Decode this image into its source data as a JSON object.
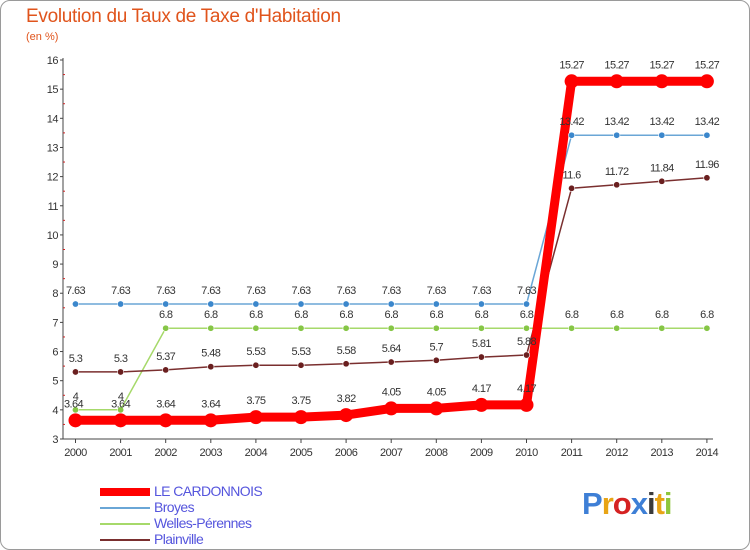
{
  "chart_data": {
    "type": "line",
    "title": "Evolution du Taux de Taxe d'Habitation",
    "unit_label": "(en %)",
    "xlabel": "",
    "ylabel": "",
    "x": [
      "2000",
      "2001",
      "2002",
      "2003",
      "2004",
      "2005",
      "2006",
      "2007",
      "2008",
      "2009",
      "2010",
      "2011",
      "2012",
      "2013",
      "2014"
    ],
    "ylim": [
      3,
      16
    ],
    "yticks": [
      3,
      4,
      5,
      6,
      7,
      8,
      9,
      10,
      11,
      12,
      13,
      14,
      15,
      16
    ],
    "grid": false,
    "legend_position": "bottom-left",
    "series": [
      {
        "name": "LE CARDONNOIS",
        "color": "#ff0000",
        "values": [
          3.64,
          3.64,
          3.64,
          3.64,
          3.75,
          3.75,
          3.82,
          4.05,
          4.05,
          4.17,
          4.17,
          15.27,
          15.27,
          15.27,
          15.27
        ],
        "labels": [
          "",
          "",
          "3.64",
          "3.64",
          "3.75",
          "3.75",
          "3.82",
          "4.05",
          "4.05",
          "4.17",
          "4.17",
          "15.27",
          "15.27",
          "15.27",
          "15.27"
        ]
      },
      {
        "name": "Broyes",
        "color": "#6aa6d6",
        "marker_color": "#3b87cc",
        "values": [
          7.63,
          7.63,
          7.63,
          7.63,
          7.63,
          7.63,
          7.63,
          7.63,
          7.63,
          7.63,
          7.63,
          13.42,
          13.42,
          13.42,
          13.42
        ],
        "labels": [
          "7.63",
          "7.63",
          "7.63",
          "7.63",
          "7.63",
          "7.63",
          "7.63",
          "7.63",
          "7.63",
          "7.63",
          "7.63",
          "13.42",
          "13.42",
          "13.42",
          "13.42"
        ]
      },
      {
        "name": "Welles-Pérennes",
        "color": "#a6d96a",
        "marker_color": "#86c646",
        "values": [
          4,
          4,
          6.8,
          6.8,
          6.8,
          6.8,
          6.8,
          6.8,
          6.8,
          6.8,
          6.8,
          6.8,
          6.8,
          6.8,
          6.8
        ],
        "labels": [
          "4",
          "4",
          "6.8",
          "6.8",
          "6.8",
          "6.8",
          "6.8",
          "6.8",
          "6.8",
          "6.8",
          "6.8",
          "6.8",
          "6.8",
          "6.8",
          "6.8"
        ]
      },
      {
        "name": "Plainville",
        "color": "#7a2f2f",
        "marker_color": "#6a1f1f",
        "values": [
          5.3,
          5.3,
          5.37,
          5.48,
          5.53,
          5.53,
          5.58,
          5.64,
          5.7,
          5.81,
          5.88,
          11.6,
          11.72,
          11.84,
          11.96
        ],
        "labels": [
          "5.3",
          "5.3",
          "5.37",
          "5.48",
          "5.53",
          "5.53",
          "5.58",
          "5.64",
          "5.7",
          "5.81",
          "5.88",
          "11.6",
          "11.72",
          "11.84",
          "11.96"
        ]
      }
    ],
    "overlap_labels": [
      "3.64",
      "3.64"
    ]
  },
  "brand": {
    "letters": [
      "P",
      "r",
      "o",
      "x",
      "i",
      "t",
      "i"
    ]
  }
}
